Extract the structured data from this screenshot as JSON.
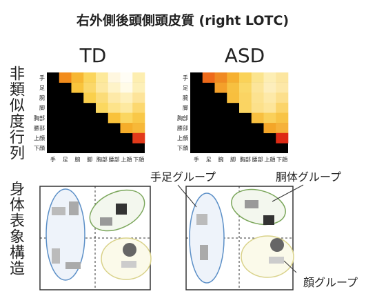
{
  "title": "右外側後頭側頭皮質 (right LOTC)",
  "side_labels": [
    "非類似度行列",
    "身体表象構造"
  ],
  "labels": [
    "手",
    "足",
    "腕",
    "脚",
    "胸部",
    "腰部",
    "上顔",
    "下顔"
  ],
  "panels": [
    {
      "title": "TD",
      "colors": [
        [
          "#f28c1c",
          "#f7b733",
          "#fbd55c",
          "#fde99a",
          "#fff7e0",
          "#fffdf5",
          "#fdeeb0"
        ],
        [
          "#f9c43c",
          "#fbd86a",
          "#fde8a0",
          "#fef3c8",
          "#fffbe8",
          "#fdf0b8"
        ],
        [
          "#fad04c",
          "#fbdc78",
          "#fde9a8",
          "#fef0bc",
          "#fde49a"
        ],
        [
          "#fbd860",
          "#fde38a",
          "#fde9a0",
          "#fcd870"
        ],
        [
          "#f9c23a",
          "#fbd660",
          "#f9c848"
        ],
        [
          "#f5ad2a",
          "#f7b838"
        ],
        [
          "#e23a1a"
        ]
      ]
    },
    {
      "title": "ASD",
      "colors": [
        [
          "#ee6a1a",
          "#f08a22",
          "#f6b030",
          "#fad258",
          "#fbe48e",
          "#fdeeb4",
          "#fce6a0"
        ],
        [
          "#f4a02a",
          "#f7c040",
          "#fad868",
          "#fce59a",
          "#fdeebc",
          "#fde8a8"
        ],
        [
          "#f7bf3e",
          "#fad463",
          "#fce290",
          "#fde9a8",
          "#fcdf8c"
        ],
        [
          "#fad462",
          "#fce08a",
          "#fde59a",
          "#fbd46a"
        ],
        [
          "#f8c040",
          "#fad05a",
          "#f8c446"
        ],
        [
          "#f4a628",
          "#f6b23a"
        ],
        [
          "#de2a14"
        ]
      ]
    }
  ],
  "groups": [
    "手足グループ",
    "胴体グループ",
    "顔グループ"
  ]
}
